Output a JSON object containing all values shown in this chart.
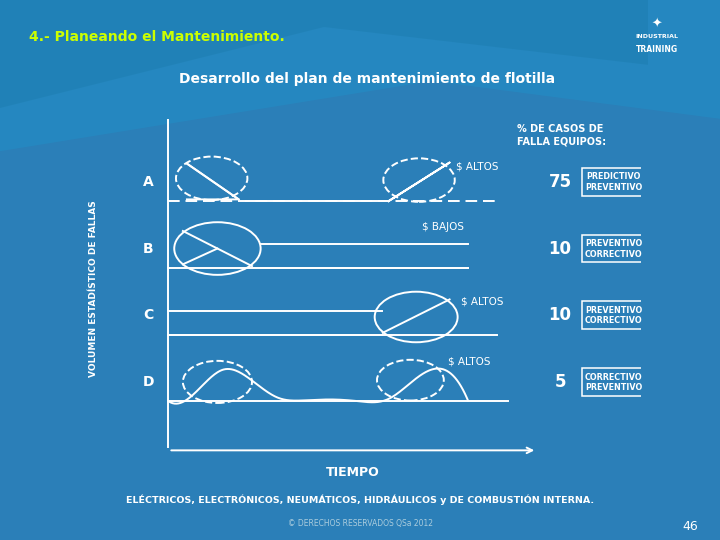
{
  "title_top": "4.- Planeando el Mantenimiento.",
  "title_main": "Desarrollo del plan de mantenimiento de flotilla",
  "ylabel": "VOLUMEN ESTADÍSTICO DE FALLAS",
  "xlabel": "TIEMPO",
  "percent_label": "% DE CASOS DE\nFALLA EQUIPOS:",
  "footer": "ELÉCTRICOS, ELECTRÓNICOS, NEUMÁTICOS, HIDRÁULICOS y DE COMBUSTIÓN INTERNA.",
  "copyright": "© DERECHOS RESERVADOS QSa 2012",
  "page_num": "46",
  "bg_color": "#2b7fb8",
  "title_bg": "#4a6e2a",
  "title_color": "#ffffff",
  "top_title_color": "#ccff00",
  "line_color": "#ffffff",
  "rows": [
    {
      "label": "A",
      "cost": "$ ALTOS",
      "percent": "75",
      "type1": "PREDICTIVO",
      "type2": "PREVENTIVO"
    },
    {
      "label": "B",
      "cost": "$ BAJOS",
      "percent": "10",
      "type1": "PREVENTIVO",
      "type2": "CORRECTIVO"
    },
    {
      "label": "C",
      "cost": "$ ALTOS",
      "percent": "10",
      "type1": "PREVENTIVO",
      "type2": "CORRECTIVO"
    },
    {
      "label": "D",
      "cost": "$ ALTOS",
      "percent": "5",
      "type1": "CORRECTIVO",
      "type2": "PREVENTIVO"
    }
  ]
}
